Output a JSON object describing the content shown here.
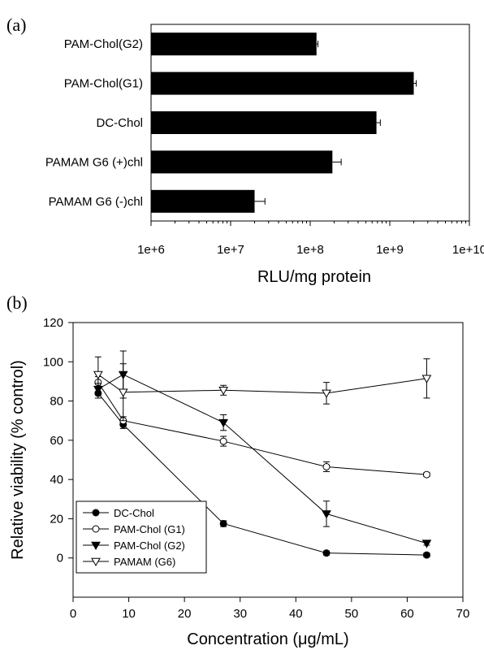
{
  "chart_data": [
    {
      "panel_label": "(a)",
      "type": "bar",
      "orientation": "horizontal",
      "x_scale": "log",
      "xlim": [
        1000000,
        10000000000
      ],
      "x_ticks": [
        "1e+6",
        "1e+7",
        "1e+8",
        "1e+9",
        "1e+10"
      ],
      "xlabel": "RLU/mg protein",
      "categories": [
        "PAM-Chol(G2)",
        "PAM-Chol(G1)",
        "DC-Chol",
        "PAMAM G6 (+)chl",
        "PAMAM G6 (-)chl"
      ],
      "values": [
        120000000,
        2000000000,
        680000000,
        190000000,
        20000000
      ],
      "error_upper": [
        125000000,
        2150000000,
        760000000,
        245000000,
        27000000
      ],
      "bar_color": "#000000",
      "grid": false
    },
    {
      "panel_label": "(b)",
      "type": "line",
      "xlim": [
        0,
        70
      ],
      "ylim": [
        -20,
        120
      ],
      "x_ticks": [
        0,
        10,
        20,
        30,
        40,
        50,
        60,
        70
      ],
      "y_ticks": [
        0,
        20,
        40,
        60,
        80,
        100,
        120
      ],
      "xlabel": "Concentration (μg/mL)",
      "ylabel": "Relative viability (% control)",
      "legend_position": "bottom-left",
      "grid": false,
      "series": [
        {
          "name": "DC-Chol",
          "marker": "circle-filled",
          "x": [
            4.5,
            9,
            27,
            45.5,
            63.5
          ],
          "y": [
            84,
            68,
            17.5,
            2.5,
            1.5
          ],
          "err": [
            2.5,
            2,
            1.5,
            1,
            1
          ]
        },
        {
          "name": "PAM-Chol (G1)",
          "marker": "circle-open",
          "x": [
            4.5,
            9,
            27,
            45.5,
            63.5
          ],
          "y": [
            89.5,
            70,
            59.5,
            46.5,
            42.5
          ],
          "err": [
            3,
            2,
            2.5,
            2.5,
            1
          ]
        },
        {
          "name": "PAM-Chol (G2)",
          "marker": "triangle-down-filled",
          "x": [
            4.5,
            9,
            27,
            45.5,
            63.5
          ],
          "y": [
            86,
            93.5,
            69,
            22.5,
            7.5
          ],
          "err": [
            3,
            12,
            4,
            6.5,
            1
          ]
        },
        {
          "name": "PAMAM (G6)",
          "marker": "triangle-down-open",
          "x": [
            4.5,
            9,
            27,
            45.5,
            63.5
          ],
          "y": [
            93.5,
            84.5,
            85.5,
            84,
            91.5
          ],
          "err": [
            9,
            14.5,
            2.5,
            5.5,
            10
          ]
        }
      ]
    }
  ]
}
